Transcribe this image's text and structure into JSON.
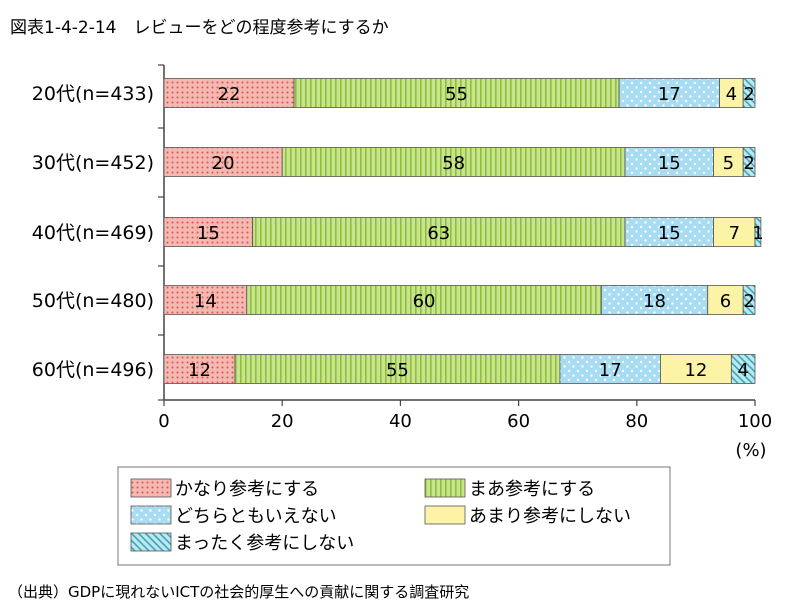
{
  "title": "図表1-4-2-14　レビューをどの程度参考にするか",
  "source": "（出典）GDPに現れないICTの社会的厚生への貢献に関する調査研究",
  "colors": {
    "s1": "#f4b9b2",
    "s1dot": "#e0524a",
    "s2": "#c9e48f",
    "s2line": "#8fbf3a",
    "s3": "#a8dcf2",
    "s3dot": "#ffffff",
    "s4": "#fdf3a6",
    "s5": "#bfe7ee",
    "s5line": "#3aa7b8",
    "border": "#555555"
  },
  "chart_data": {
    "type": "bar",
    "orientation": "horizontal",
    "stacked": true,
    "categories": [
      "20代(n=433)",
      "30代(n=452)",
      "40代(n=469)",
      "50代(n=480)",
      "60代(n=496)"
    ],
    "series": [
      {
        "name": "かなり参考にする",
        "values": [
          22,
          20,
          15,
          14,
          12
        ]
      },
      {
        "name": "まあ参考にする",
        "values": [
          55,
          58,
          63,
          60,
          55
        ]
      },
      {
        "name": "どちらともいえない",
        "values": [
          17,
          15,
          15,
          18,
          17
        ]
      },
      {
        "name": "あまり参考にしない",
        "values": [
          4,
          5,
          7,
          6,
          12
        ]
      },
      {
        "name": "まったく参考にしない",
        "values": [
          2,
          2,
          1,
          2,
          4
        ]
      }
    ],
    "xlim": [
      0,
      100
    ],
    "xticks": [
      0,
      20,
      40,
      60,
      80,
      100
    ],
    "xunit": "(%)",
    "legend_position": "bottom"
  }
}
